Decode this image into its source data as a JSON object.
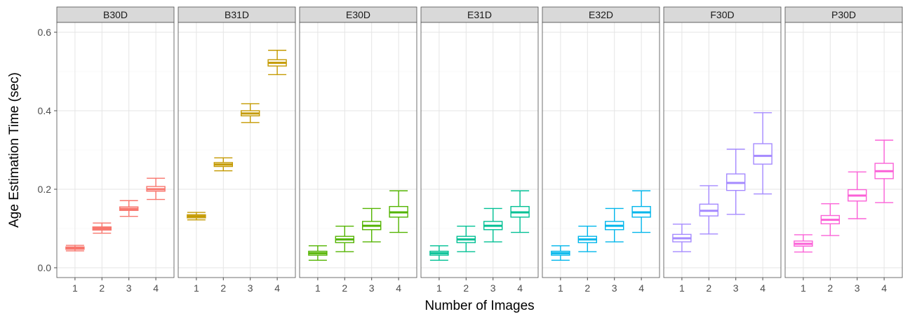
{
  "chart_data": {
    "type": "boxplot",
    "xlabel": "Number of Images",
    "ylabel": "Age Estimation Time (sec)",
    "ylim": [
      -0.025,
      0.625
    ],
    "y_ticks": [
      0.0,
      0.2,
      0.4,
      0.6
    ],
    "y_tick_labels": [
      "0.0",
      "0.2",
      "0.4",
      "0.6"
    ],
    "categories": [
      "1",
      "2",
      "3",
      "4"
    ],
    "grid": true,
    "facets": [
      {
        "name": "B30D",
        "color": "#F8766D",
        "boxes": [
          {
            "x": "1",
            "min": 0.043,
            "q1": 0.047,
            "median": 0.05,
            "q3": 0.053,
            "max": 0.057
          },
          {
            "x": "2",
            "min": 0.088,
            "q1": 0.096,
            "median": 0.1,
            "q3": 0.104,
            "max": 0.114
          },
          {
            "x": "3",
            "min": 0.131,
            "q1": 0.146,
            "median": 0.15,
            "q3": 0.155,
            "max": 0.171
          },
          {
            "x": "4",
            "min": 0.174,
            "q1": 0.195,
            "median": 0.2,
            "q3": 0.207,
            "max": 0.228
          }
        ]
      },
      {
        "name": "B31D",
        "color": "#C49A00",
        "boxes": [
          {
            "x": "1",
            "min": 0.122,
            "q1": 0.127,
            "median": 0.131,
            "q3": 0.135,
            "max": 0.141
          },
          {
            "x": "2",
            "min": 0.247,
            "q1": 0.258,
            "median": 0.263,
            "q3": 0.268,
            "max": 0.28
          },
          {
            "x": "3",
            "min": 0.37,
            "q1": 0.387,
            "median": 0.393,
            "q3": 0.4,
            "max": 0.418
          },
          {
            "x": "4",
            "min": 0.492,
            "q1": 0.514,
            "median": 0.522,
            "q3": 0.53,
            "max": 0.554
          }
        ]
      },
      {
        "name": "E30D",
        "color": "#53B400",
        "boxes": [
          {
            "x": "1",
            "min": 0.019,
            "q1": 0.032,
            "median": 0.037,
            "q3": 0.042,
            "max": 0.056
          },
          {
            "x": "2",
            "min": 0.041,
            "q1": 0.064,
            "median": 0.072,
            "q3": 0.08,
            "max": 0.106
          },
          {
            "x": "3",
            "min": 0.066,
            "q1": 0.097,
            "median": 0.107,
            "q3": 0.118,
            "max": 0.151
          },
          {
            "x": "4",
            "min": 0.09,
            "q1": 0.129,
            "median": 0.141,
            "q3": 0.156,
            "max": 0.196
          }
        ]
      },
      {
        "name": "E31D",
        "color": "#00C094",
        "boxes": [
          {
            "x": "1",
            "min": 0.019,
            "q1": 0.032,
            "median": 0.037,
            "q3": 0.042,
            "max": 0.056
          },
          {
            "x": "2",
            "min": 0.041,
            "q1": 0.064,
            "median": 0.072,
            "q3": 0.08,
            "max": 0.106
          },
          {
            "x": "3",
            "min": 0.066,
            "q1": 0.097,
            "median": 0.107,
            "q3": 0.118,
            "max": 0.151
          },
          {
            "x": "4",
            "min": 0.09,
            "q1": 0.129,
            "median": 0.141,
            "q3": 0.156,
            "max": 0.196
          }
        ]
      },
      {
        "name": "E32D",
        "color": "#00B6EB",
        "boxes": [
          {
            "x": "1",
            "min": 0.019,
            "q1": 0.032,
            "median": 0.037,
            "q3": 0.042,
            "max": 0.056
          },
          {
            "x": "2",
            "min": 0.041,
            "q1": 0.064,
            "median": 0.072,
            "q3": 0.08,
            "max": 0.106
          },
          {
            "x": "3",
            "min": 0.066,
            "q1": 0.097,
            "median": 0.107,
            "q3": 0.118,
            "max": 0.151
          },
          {
            "x": "4",
            "min": 0.09,
            "q1": 0.129,
            "median": 0.141,
            "q3": 0.156,
            "max": 0.196
          }
        ]
      },
      {
        "name": "F30D",
        "color": "#A58AFF",
        "boxes": [
          {
            "x": "1",
            "min": 0.041,
            "q1": 0.066,
            "median": 0.075,
            "q3": 0.085,
            "max": 0.111
          },
          {
            "x": "2",
            "min": 0.086,
            "q1": 0.132,
            "median": 0.145,
            "q3": 0.162,
            "max": 0.209
          },
          {
            "x": "3",
            "min": 0.136,
            "q1": 0.197,
            "median": 0.216,
            "q3": 0.239,
            "max": 0.302
          },
          {
            "x": "4",
            "min": 0.188,
            "q1": 0.264,
            "median": 0.285,
            "q3": 0.316,
            "max": 0.395
          }
        ]
      },
      {
        "name": "P30D",
        "color": "#FB61D7",
        "boxes": [
          {
            "x": "1",
            "min": 0.04,
            "q1": 0.055,
            "median": 0.061,
            "q3": 0.068,
            "max": 0.084
          },
          {
            "x": "2",
            "min": 0.082,
            "q1": 0.112,
            "median": 0.122,
            "q3": 0.133,
            "max": 0.163
          },
          {
            "x": "3",
            "min": 0.125,
            "q1": 0.17,
            "median": 0.184,
            "q3": 0.199,
            "max": 0.244
          },
          {
            "x": "4",
            "min": 0.166,
            "q1": 0.227,
            "median": 0.246,
            "q3": 0.266,
            "max": 0.325
          }
        ]
      }
    ]
  }
}
